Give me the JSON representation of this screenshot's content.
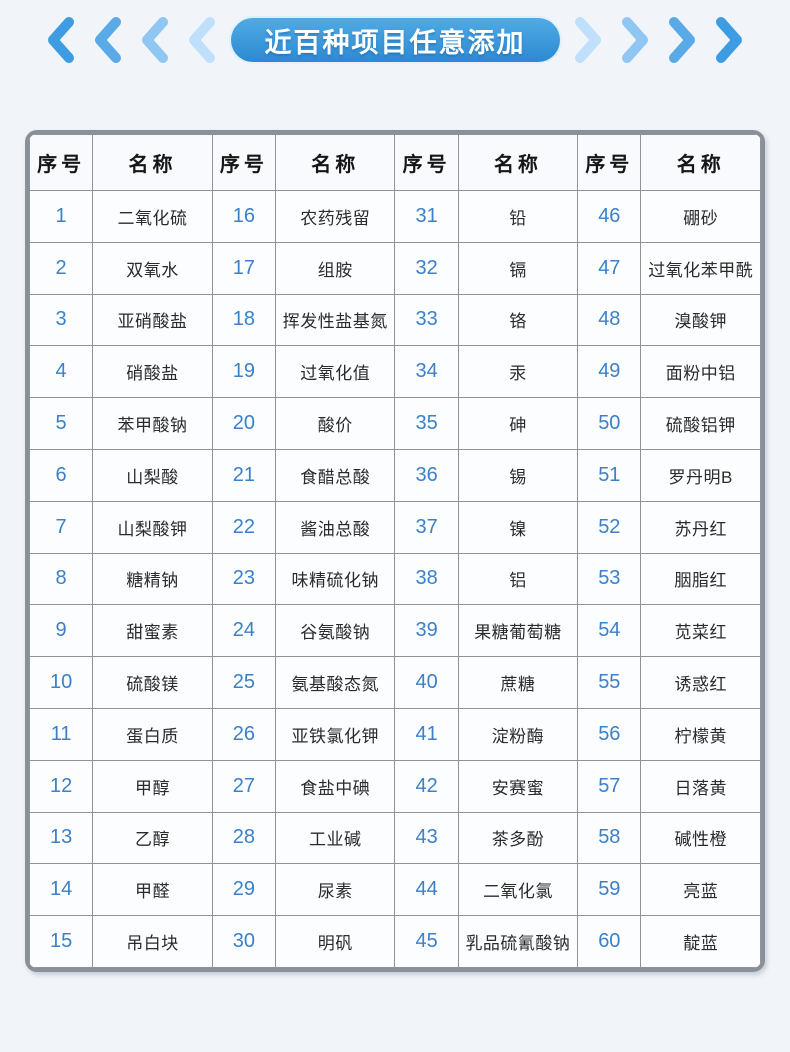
{
  "banner": {
    "title": "近百种项目任意添加"
  },
  "icons": {
    "left": "chevrons-left-icon",
    "right": "chevrons-right-icon"
  },
  "colors": {
    "page_background": "#f1f5fa",
    "pill_gradient_top": "#50aae6",
    "pill_gradient_bottom": "#2d8ad1",
    "number_blue": "#3b80c8",
    "grid_line": "#8f9296",
    "outer_border": "#899097",
    "chevron_shades": [
      "#3e9ce3",
      "#5aaae8",
      "#90c6f2",
      "#bfdffa"
    ]
  },
  "table": {
    "headers": [
      "序号",
      "名称",
      "序号",
      "名称",
      "序号",
      "名称",
      "序号",
      "名称"
    ],
    "rows": [
      [
        "1",
        "二氧化硫",
        "16",
        "农药残留",
        "31",
        "铅",
        "46",
        "硼砂"
      ],
      [
        "2",
        "双氧水",
        "17",
        "组胺",
        "32",
        "镉",
        "47",
        "过氧化苯甲酰"
      ],
      [
        "3",
        "亚硝酸盐",
        "18",
        "挥发性盐基氮",
        "33",
        "铬",
        "48",
        "溴酸钾"
      ],
      [
        "4",
        "硝酸盐",
        "19",
        "过氧化值",
        "34",
        "汞",
        "49",
        "面粉中铝"
      ],
      [
        "5",
        "苯甲酸钠",
        "20",
        "酸价",
        "35",
        "砷",
        "50",
        "硫酸铝钾"
      ],
      [
        "6",
        "山梨酸",
        "21",
        "食醋总酸",
        "36",
        "锡",
        "51",
        "罗丹明B"
      ],
      [
        "7",
        "山梨酸钾",
        "22",
        "酱油总酸",
        "37",
        "镍",
        "52",
        "苏丹红"
      ],
      [
        "8",
        "糖精钠",
        "23",
        "味精硫化钠",
        "38",
        "铝",
        "53",
        "胭脂红"
      ],
      [
        "9",
        "甜蜜素",
        "24",
        "谷氨酸钠",
        "39",
        "果糖葡萄糖",
        "54",
        "苋菜红"
      ],
      [
        "10",
        "硫酸镁",
        "25",
        "氨基酸态氮",
        "40",
        "蔗糖",
        "55",
        "诱惑红"
      ],
      [
        "11",
        "蛋白质",
        "26",
        "亚铁氯化钾",
        "41",
        "淀粉酶",
        "56",
        "柠檬黄"
      ],
      [
        "12",
        "甲醇",
        "27",
        "食盐中碘",
        "42",
        "安赛蜜",
        "57",
        "日落黄"
      ],
      [
        "13",
        "乙醇",
        "28",
        "工业碱",
        "43",
        "茶多酚",
        "58",
        "碱性橙"
      ],
      [
        "14",
        "甲醛",
        "29",
        "尿素",
        "44",
        "二氧化氯",
        "59",
        "亮蓝"
      ],
      [
        "15",
        "吊白块",
        "30",
        "明矾",
        "45",
        "乳品硫氰酸钠",
        "60",
        "靛蓝"
      ]
    ]
  }
}
